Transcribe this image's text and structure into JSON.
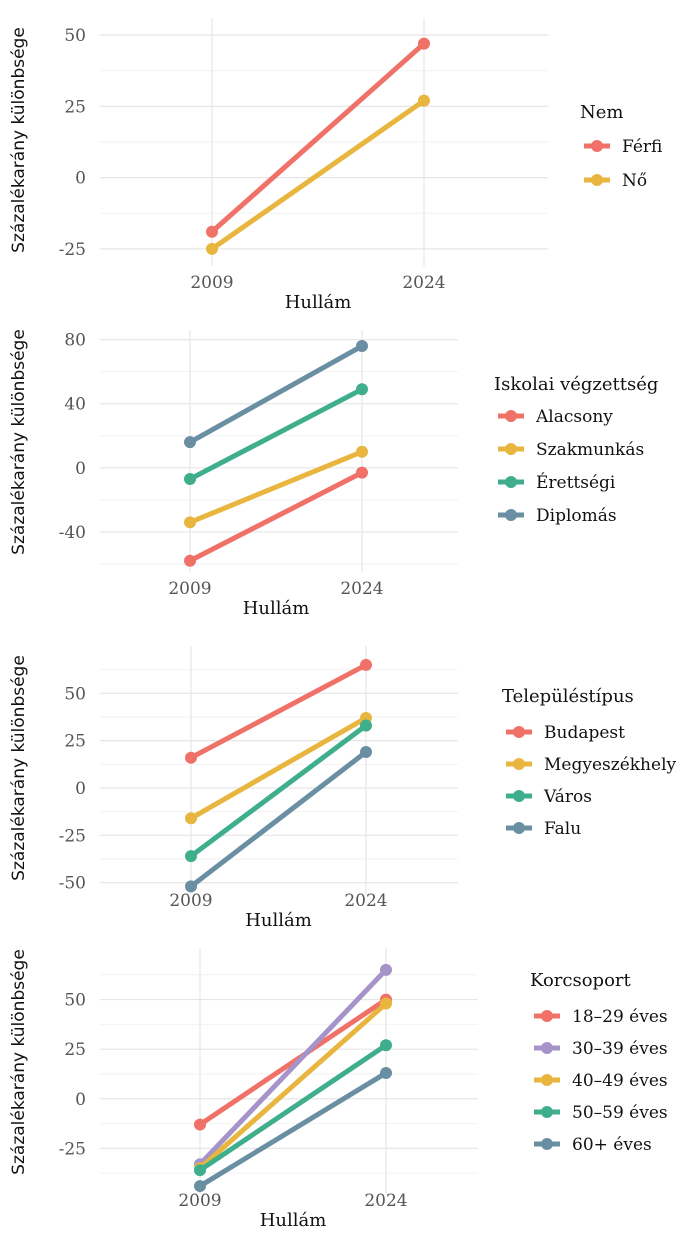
{
  "chart_data": [
    {
      "type": "line",
      "title": "",
      "xlabel": "Hullám",
      "ylabel": "Százalékarány különbsége",
      "categories": [
        "2009",
        "2024"
      ],
      "ylim": [
        -31,
        56
      ],
      "yticks": [
        -25,
        0,
        25,
        50
      ],
      "ytick_labels": [
        "-25",
        "0",
        "25",
        "50"
      ],
      "grid": true,
      "legend_position": "right",
      "legend_title": "Nem",
      "series": [
        {
          "name": "Férfi",
          "color": "#F07167",
          "values": [
            -19,
            47
          ]
        },
        {
          "name": "Nő",
          "color": "#E8B63E",
          "values": [
            -25,
            27
          ]
        }
      ]
    },
    {
      "type": "line",
      "title": "",
      "xlabel": "Hullám",
      "ylabel": "Százalékarány különbsége",
      "categories": [
        "2009",
        "2024"
      ],
      "ylim": [
        -65,
        86
      ],
      "yticks": [
        -40,
        0,
        40,
        80
      ],
      "ytick_labels": [
        "-40",
        "0",
        "40",
        "80"
      ],
      "grid": true,
      "legend_position": "right",
      "legend_title": "Iskolai végzettség",
      "series": [
        {
          "name": "Alacsony",
          "color": "#F07167",
          "values": [
            -58,
            -3
          ]
        },
        {
          "name": "Szakmunkás",
          "color": "#E8B63E",
          "values": [
            -34,
            10
          ]
        },
        {
          "name": "Érettségi",
          "color": "#3FAE8C",
          "values": [
            -7,
            49
          ]
        },
        {
          "name": "Diplomás",
          "color": "#6A8FA2",
          "values": [
            16,
            76
          ]
        }
      ]
    },
    {
      "type": "line",
      "title": "",
      "xlabel": "Hullám",
      "ylabel": "Százalékarány különbsége",
      "categories": [
        "2009",
        "2024"
      ],
      "ylim": [
        -56,
        75
      ],
      "yticks": [
        -50,
        -25,
        0,
        25,
        50
      ],
      "ytick_labels": [
        "-50",
        "-25",
        "0",
        "25",
        "50"
      ],
      "grid": true,
      "legend_position": "right",
      "legend_title": "Településtípus",
      "series": [
        {
          "name": "Budapest",
          "color": "#F07167",
          "values": [
            16,
            65
          ]
        },
        {
          "name": "Megyeszékhely",
          "color": "#E8B63E",
          "values": [
            -16,
            37
          ]
        },
        {
          "name": "Város",
          "color": "#3FAE8C",
          "values": [
            -36,
            33
          ]
        },
        {
          "name": "Falu",
          "color": "#6A8FA2",
          "values": [
            -52,
            19
          ]
        }
      ]
    },
    {
      "type": "line",
      "title": "",
      "xlabel": "Hullám",
      "ylabel": "Százalékarány különbsége",
      "categories": [
        "2009",
        "2024"
      ],
      "ylim": [
        -48,
        76
      ],
      "yticks": [
        -25,
        0,
        25,
        50
      ],
      "ytick_labels": [
        "-25",
        "0",
        "25",
        "50"
      ],
      "grid": true,
      "legend_position": "right",
      "legend_title": "Korcsoport",
      "series": [
        {
          "name": "18–29 éves",
          "color": "#F07167",
          "values": [
            -13,
            50
          ]
        },
        {
          "name": "30–39 éves",
          "color": "#A593C9",
          "values": [
            -33,
            65
          ]
        },
        {
          "name": "40–49 éves",
          "color": "#E8B63E",
          "values": [
            -35,
            48
          ]
        },
        {
          "name": "50–59 éves",
          "color": "#3FAE8C",
          "values": [
            -36,
            27
          ]
        },
        {
          "name": "60+ éves",
          "color": "#6A8FA2",
          "values": [
            -44,
            13
          ]
        }
      ]
    }
  ]
}
